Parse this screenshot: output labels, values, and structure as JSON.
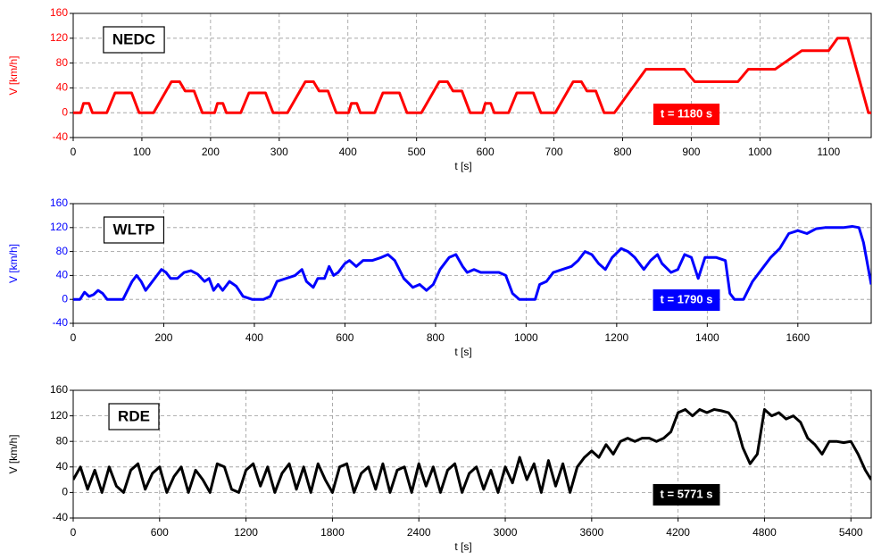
{
  "chart_data": [
    {
      "type": "line",
      "title": "NEDC",
      "annotation": "t = 1180 s",
      "ylabel": "V [km/h]",
      "xlabel": "t [s]",
      "xlim": [
        0,
        1162
      ],
      "ylim": [
        -40,
        160
      ],
      "xticks": [
        0,
        100,
        200,
        300,
        400,
        500,
        600,
        700,
        800,
        900,
        1000,
        1100
      ],
      "yticks": [
        -40,
        0,
        40,
        80,
        120,
        160
      ],
      "grid": true,
      "x": [
        0,
        11,
        15,
        23,
        28,
        49,
        61,
        85,
        96,
        117,
        143,
        155,
        163,
        176,
        188,
        195,
        206,
        210,
        218,
        223,
        244,
        256,
        280,
        291,
        312,
        338,
        350,
        358,
        371,
        383,
        390,
        401,
        405,
        413,
        418,
        439,
        451,
        475,
        486,
        507,
        533,
        545,
        553,
        566,
        578,
        585,
        596,
        600,
        608,
        613,
        634,
        646,
        670,
        681,
        702,
        728,
        740,
        748,
        761,
        773,
        788,
        834,
        890,
        905,
        968,
        983,
        1022,
        1061,
        1100,
        1113,
        1128,
        1158,
        1162
      ],
      "series": [
        {
          "color": "#ff0000",
          "values": [
            0,
            0,
            15,
            15,
            0,
            0,
            32,
            32,
            0,
            0,
            50,
            50,
            35,
            35,
            0,
            0,
            0,
            15,
            15,
            0,
            0,
            32,
            32,
            0,
            0,
            50,
            50,
            35,
            35,
            0,
            0,
            0,
            15,
            15,
            0,
            0,
            32,
            32,
            0,
            0,
            50,
            50,
            35,
            35,
            0,
            0,
            0,
            15,
            15,
            0,
            0,
            32,
            32,
            0,
            0,
            50,
            50,
            35,
            35,
            0,
            0,
            70,
            70,
            50,
            50,
            70,
            70,
            100,
            100,
            120,
            120,
            0,
            0
          ]
        }
      ]
    },
    {
      "type": "line",
      "title": "WLTP",
      "annotation": "t = 1790 s",
      "ylabel": "V [km/h]",
      "xlabel": "t [s]",
      "xlim": [
        0,
        1762
      ],
      "ylim": [
        -40,
        160
      ],
      "xticks": [
        0,
        200,
        400,
        600,
        800,
        1000,
        1200,
        1400,
        1600
      ],
      "yticks": [
        -40,
        0,
        40,
        80,
        120,
        160
      ],
      "grid": true,
      "x": [
        0,
        15,
        25,
        35,
        45,
        55,
        65,
        75,
        110,
        130,
        140,
        150,
        160,
        170,
        185,
        195,
        205,
        215,
        230,
        245,
        260,
        275,
        290,
        300,
        310,
        320,
        330,
        345,
        360,
        375,
        395,
        420,
        435,
        450,
        470,
        490,
        505,
        515,
        530,
        540,
        555,
        565,
        575,
        585,
        600,
        610,
        625,
        640,
        660,
        680,
        695,
        710,
        730,
        750,
        765,
        780,
        795,
        810,
        830,
        845,
        860,
        870,
        885,
        900,
        920,
        940,
        955,
        970,
        985,
        1020,
        1030,
        1045,
        1060,
        1080,
        1100,
        1115,
        1130,
        1145,
        1160,
        1175,
        1190,
        1210,
        1225,
        1240,
        1260,
        1275,
        1290,
        1300,
        1320,
        1335,
        1350,
        1365,
        1380,
        1395,
        1420,
        1440,
        1450,
        1460,
        1480,
        1500,
        1520,
        1540,
        1560,
        1580,
        1600,
        1620,
        1640,
        1660,
        1700,
        1720,
        1735,
        1745,
        1762
      ],
      "series": [
        {
          "color": "#0000ff",
          "values": [
            0,
            0,
            12,
            5,
            8,
            15,
            10,
            0,
            0,
            30,
            40,
            30,
            15,
            25,
            40,
            50,
            45,
            35,
            35,
            45,
            48,
            42,
            30,
            35,
            15,
            25,
            15,
            30,
            22,
            5,
            0,
            0,
            5,
            30,
            35,
            40,
            50,
            30,
            20,
            35,
            35,
            55,
            40,
            45,
            60,
            65,
            55,
            65,
            65,
            70,
            75,
            65,
            35,
            20,
            25,
            15,
            25,
            50,
            70,
            75,
            55,
            45,
            50,
            45,
            45,
            45,
            40,
            10,
            0,
            0,
            25,
            30,
            45,
            50,
            55,
            65,
            80,
            75,
            60,
            50,
            70,
            85,
            80,
            70,
            50,
            65,
            75,
            60,
            45,
            50,
            75,
            70,
            35,
            70,
            70,
            65,
            10,
            0,
            0,
            30,
            50,
            70,
            85,
            110,
            115,
            110,
            118,
            120,
            120,
            122,
            120,
            95,
            25
          ]
        }
      ]
    },
    {
      "type": "line",
      "title": "RDE",
      "annotation": "t = 5771 s",
      "ylabel": "V [km/h]",
      "xlabel": "t [s]",
      "xlim": [
        0,
        5541
      ],
      "ylim": [
        -40,
        160
      ],
      "xticks": [
        0,
        600,
        1200,
        1800,
        2400,
        3000,
        3600,
        4200,
        4800,
        5400
      ],
      "yticks": [
        -40,
        0,
        40,
        80,
        120,
        160
      ],
      "grid": true,
      "x": [
        0,
        50,
        100,
        150,
        200,
        250,
        300,
        350,
        400,
        450,
        500,
        550,
        600,
        650,
        700,
        750,
        800,
        850,
        900,
        950,
        1000,
        1050,
        1100,
        1150,
        1200,
        1250,
        1300,
        1350,
        1400,
        1450,
        1500,
        1550,
        1600,
        1650,
        1700,
        1750,
        1800,
        1850,
        1900,
        1950,
        2000,
        2050,
        2100,
        2150,
        2200,
        2250,
        2300,
        2350,
        2400,
        2450,
        2500,
        2550,
        2600,
        2650,
        2700,
        2750,
        2800,
        2850,
        2900,
        2950,
        3000,
        3050,
        3100,
        3150,
        3200,
        3250,
        3300,
        3350,
        3400,
        3450,
        3500,
        3550,
        3600,
        3650,
        3700,
        3750,
        3800,
        3850,
        3900,
        3950,
        4000,
        4050,
        4100,
        4150,
        4200,
        4250,
        4300,
        4350,
        4400,
        4450,
        4500,
        4550,
        4600,
        4650,
        4700,
        4750,
        4800,
        4850,
        4900,
        4950,
        5000,
        5050,
        5100,
        5150,
        5200,
        5250,
        5300,
        5350,
        5400,
        5450,
        5500,
        5541
      ],
      "series": [
        {
          "color": "#000000",
          "values": [
            20,
            40,
            5,
            35,
            0,
            40,
            10,
            0,
            35,
            45,
            5,
            30,
            40,
            0,
            25,
            40,
            0,
            35,
            20,
            0,
            45,
            40,
            5,
            0,
            35,
            45,
            10,
            40,
            0,
            30,
            45,
            5,
            40,
            0,
            45,
            20,
            0,
            40,
            45,
            0,
            30,
            40,
            5,
            45,
            0,
            35,
            40,
            0,
            45,
            10,
            40,
            0,
            35,
            45,
            0,
            30,
            40,
            5,
            35,
            0,
            40,
            15,
            55,
            20,
            45,
            0,
            50,
            10,
            45,
            0,
            40,
            55,
            65,
            55,
            75,
            60,
            80,
            85,
            80,
            85,
            85,
            80,
            85,
            95,
            125,
            130,
            120,
            130,
            125,
            130,
            128,
            125,
            110,
            70,
            45,
            60,
            130,
            120,
            125,
            115,
            120,
            110,
            85,
            75,
            60,
            80,
            80,
            78,
            80,
            60,
            35,
            20
          ]
        }
      ]
    }
  ]
}
